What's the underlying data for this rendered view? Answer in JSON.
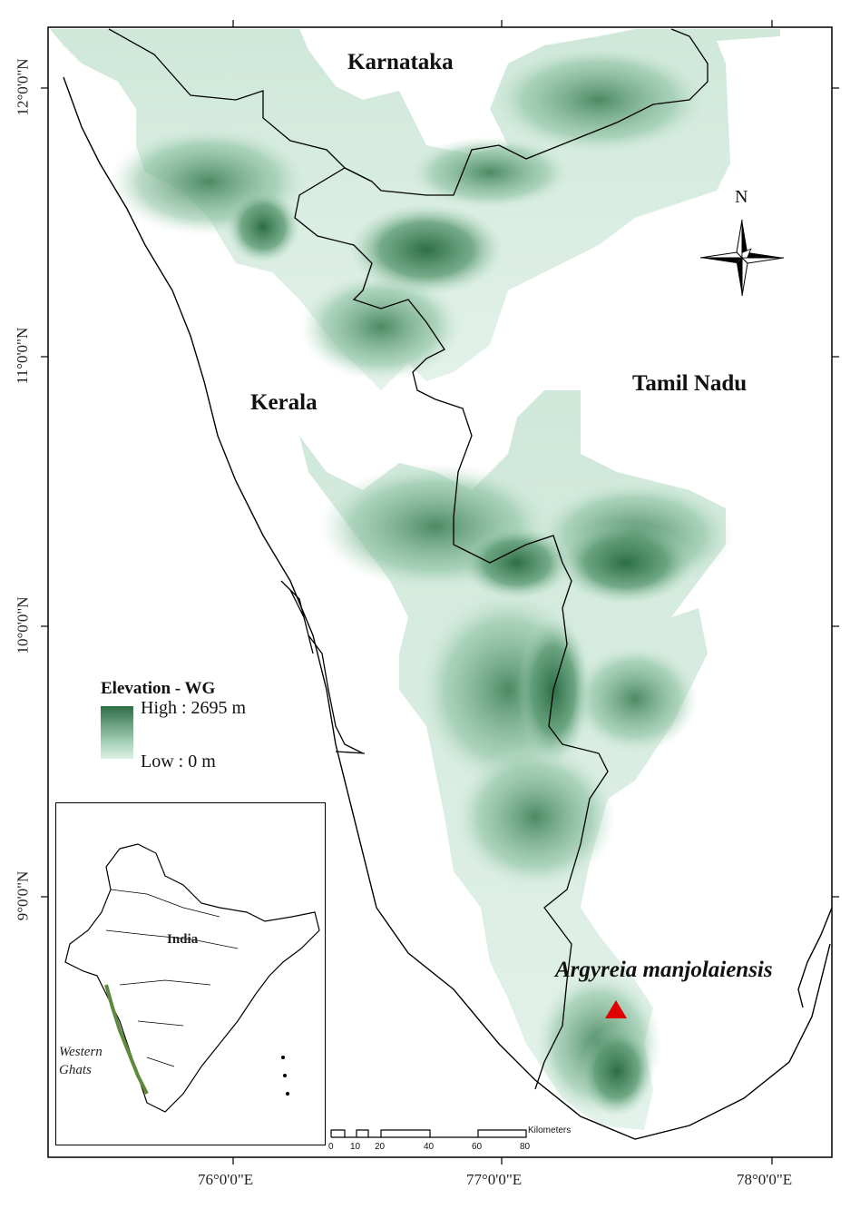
{
  "map": {
    "regions": {
      "karnataka": "Karnataka",
      "kerala": "Kerala",
      "tamil_nadu": "Tamil Nadu"
    },
    "latitude_labels": [
      "12°0'0\"N",
      "11°0'0\"N",
      "10°0'0\"N",
      "9°0'0\"N"
    ],
    "longitude_labels": [
      "76°0'0\"E",
      "77°0'0\"E",
      "78°0'0\"E"
    ],
    "legend": {
      "title": "Elevation - WG",
      "high": "High : 2695 m",
      "low": "Low : 0 m",
      "color_high": "#2c6e45",
      "color_low": "#dcefe5"
    },
    "north_arrow": {
      "label": "N",
      "icon": "compass-rose-icon"
    },
    "species_marker": {
      "label": "Argyreia manjolaiensis",
      "symbol": "red-triangle-icon",
      "color": "#e00000"
    },
    "inset": {
      "country_label": "India",
      "region_label_line1": "Western",
      "region_label_line2": "Ghats",
      "ghats_color": "#5d8a3c"
    },
    "scale_bar": {
      "unit": "Kilometers",
      "ticks": [
        "0",
        "10",
        "20",
        "40",
        "60",
        "80"
      ]
    }
  }
}
